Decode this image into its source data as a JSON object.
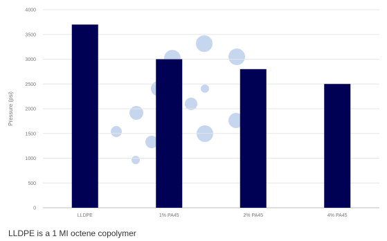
{
  "chart_data": {
    "type": "bar",
    "title": "",
    "xlabel": "",
    "ylabel": "Pressure (psi)",
    "categories": [
      "LLDPE",
      "1% PA45",
      "2% PA45",
      "4% PA45"
    ],
    "values": [
      3700,
      3000,
      2800,
      2500
    ],
    "ylim": [
      0,
      4000
    ],
    "yticks": [
      0,
      500,
      1000,
      1500,
      2000,
      2500,
      3000,
      3500,
      4000
    ],
    "grid": true,
    "bar_color": "#000055",
    "decoration_color": "#c7d6ef"
  },
  "footnote": "LLDPE is a 1 MI octene copolymer"
}
